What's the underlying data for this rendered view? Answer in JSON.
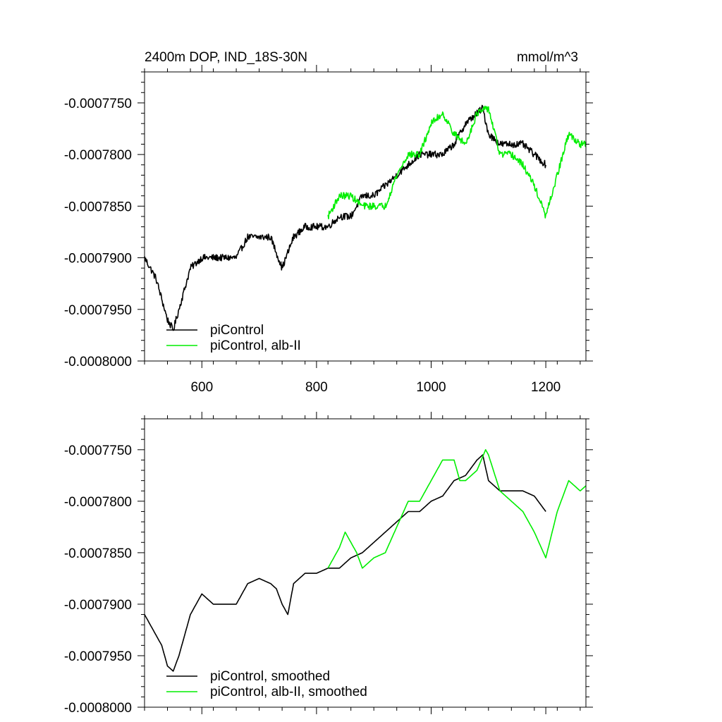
{
  "chart_data": [
    {
      "type": "line",
      "title": "2400m DOP, IND_18S-30N",
      "units": "mmol/m^3",
      "xlim": [
        500,
        1270
      ],
      "ylim": [
        -0.0008,
        -0.000772
      ],
      "x_ticks": [
        600,
        800,
        1000,
        1200
      ],
      "x_tick_labels": [
        "600",
        "800",
        "1000",
        "1200"
      ],
      "y_ticks": [
        -0.0008,
        -0.000795,
        -0.00079,
        -0.000785,
        -0.00078,
        -0.000775
      ],
      "y_tick_labels": [
        "-0.0008000",
        "-0.0007950",
        "-0.0007900",
        "-0.0007850",
        "-0.0007800",
        "-0.0007750"
      ],
      "grid": false,
      "legend_position": "bottom-left",
      "smoothed": false,
      "series": [
        {
          "name": "piControl",
          "color": "#000000",
          "x": [
            500,
            520,
            540,
            550,
            560,
            580,
            600,
            620,
            640,
            660,
            680,
            700,
            720,
            740,
            760,
            780,
            800,
            820,
            840,
            860,
            880,
            900,
            920,
            940,
            960,
            980,
            1000,
            1020,
            1040,
            1060,
            1080,
            1090,
            1100,
            1120,
            1140,
            1160,
            1180,
            1200
          ],
          "values": [
            -0.00079,
            -0.000792,
            -0.000796,
            -0.000797,
            -0.000795,
            -0.000791,
            -0.00079,
            -0.00079,
            -0.00079,
            -0.00079,
            -0.000788,
            -0.000788,
            -0.000788,
            -0.000791,
            -0.000788,
            -0.000787,
            -0.000787,
            -0.000787,
            -0.000786,
            -0.000786,
            -0.000784,
            -0.000784,
            -0.000783,
            -0.000782,
            -0.000781,
            -0.00078,
            -0.00078,
            -0.00078,
            -0.000779,
            -0.000777,
            -0.000776,
            -0.0007755,
            -0.000778,
            -0.000779,
            -0.000779,
            -0.000779,
            -0.00078,
            -0.000781
          ]
        },
        {
          "name": "piControl, alb-II",
          "color": "#00ee00",
          "x": [
            820,
            840,
            860,
            880,
            900,
            920,
            940,
            960,
            980,
            1000,
            1020,
            1040,
            1060,
            1080,
            1100,
            1120,
            1140,
            1160,
            1180,
            1200,
            1220,
            1240,
            1260,
            1270
          ],
          "values": [
            -0.000786,
            -0.000784,
            -0.000784,
            -0.000785,
            -0.000785,
            -0.000785,
            -0.000782,
            -0.00078,
            -0.00078,
            -0.000777,
            -0.000776,
            -0.000778,
            -0.000779,
            -0.000776,
            -0.0007755,
            -0.00078,
            -0.00078,
            -0.000781,
            -0.000783,
            -0.000786,
            -0.000782,
            -0.000778,
            -0.000779,
            -0.000779
          ]
        }
      ]
    },
    {
      "type": "line",
      "title": "",
      "xlim": [
        500,
        1270
      ],
      "ylim": [
        -0.0008,
        -0.000772
      ],
      "x_ticks": [
        600,
        800,
        1000,
        1200
      ],
      "y_ticks": [
        -0.0008,
        -0.000795,
        -0.00079,
        -0.000785,
        -0.00078,
        -0.000775
      ],
      "y_tick_labels": [
        "-0.0008000",
        "-0.0007950",
        "-0.0007900",
        "-0.0007850",
        "-0.0007800",
        "-0.0007750"
      ],
      "grid": false,
      "legend_position": "bottom-left",
      "smoothed": true,
      "series": [
        {
          "name": "piControl, smoothed",
          "color": "#000000",
          "x": [
            500,
            520,
            530,
            540,
            550,
            560,
            580,
            600,
            620,
            640,
            660,
            680,
            700,
            720,
            730,
            740,
            750,
            760,
            780,
            800,
            820,
            840,
            860,
            880,
            900,
            920,
            940,
            960,
            980,
            1000,
            1020,
            1040,
            1060,
            1080,
            1090,
            1100,
            1120,
            1140,
            1160,
            1180,
            1200
          ],
          "values": [
            -0.000791,
            -0.000793,
            -0.000794,
            -0.000796,
            -0.0007965,
            -0.000795,
            -0.000791,
            -0.000789,
            -0.00079,
            -0.00079,
            -0.00079,
            -0.000788,
            -0.0007875,
            -0.000788,
            -0.0007885,
            -0.00079,
            -0.000791,
            -0.000788,
            -0.000787,
            -0.000787,
            -0.0007865,
            -0.0007865,
            -0.0007855,
            -0.000785,
            -0.000784,
            -0.000783,
            -0.000782,
            -0.000781,
            -0.000781,
            -0.00078,
            -0.0007795,
            -0.000778,
            -0.0007775,
            -0.000776,
            -0.0007755,
            -0.000778,
            -0.000779,
            -0.000779,
            -0.000779,
            -0.0007795,
            -0.000781
          ]
        },
        {
          "name": "piControl, alb-II, smoothed",
          "color": "#00ee00",
          "x": [
            820,
            840,
            850,
            860,
            870,
            880,
            900,
            920,
            940,
            960,
            980,
            1000,
            1020,
            1040,
            1050,
            1060,
            1080,
            1095,
            1100,
            1120,
            1140,
            1160,
            1180,
            1200,
            1220,
            1240,
            1260,
            1270
          ],
          "values": [
            -0.0007865,
            -0.0007845,
            -0.000783,
            -0.000784,
            -0.000785,
            -0.0007865,
            -0.0007855,
            -0.000785,
            -0.0007825,
            -0.00078,
            -0.00078,
            -0.000778,
            -0.000776,
            -0.000776,
            -0.000778,
            -0.000778,
            -0.000777,
            -0.000775,
            -0.0007755,
            -0.000779,
            -0.00078,
            -0.000781,
            -0.000783,
            -0.0007855,
            -0.000781,
            -0.000778,
            -0.000779,
            -0.0007785
          ]
        }
      ]
    }
  ]
}
